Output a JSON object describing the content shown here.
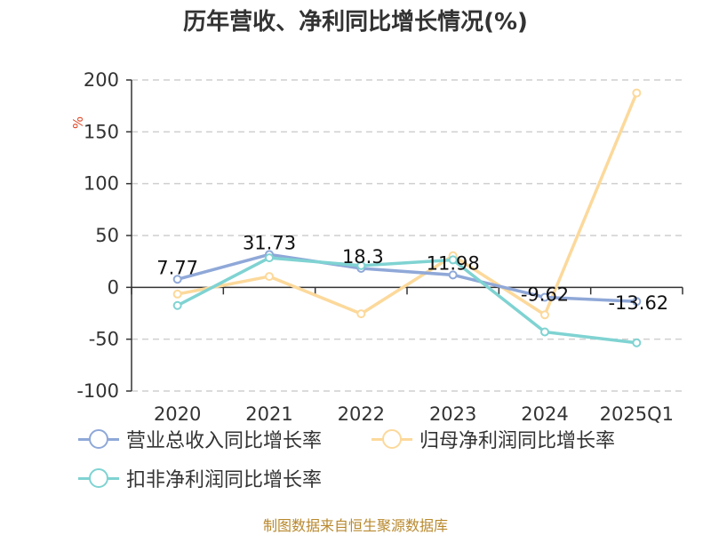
{
  "chart_data": {
    "type": "line",
    "title": "历年营收、净利同比增长情况(%)",
    "ylabel": "%",
    "categories": [
      "2020",
      "2021",
      "2022",
      "2023",
      "2024",
      "2025Q1"
    ],
    "yticks": [
      "200",
      "150",
      "100",
      "50",
      "0",
      "-50",
      "-100"
    ],
    "ylim": [
      -100,
      200
    ],
    "grid": true,
    "legend_position": "bottom",
    "series": [
      {
        "name": "营业总收入同比增长率",
        "color": "#8fa8d8",
        "values": [
          7.77,
          31.73,
          18.3,
          11.98,
          -9.62,
          -13.62
        ],
        "labels": [
          "7.77",
          "31.73",
          "18.3",
          "11.98",
          "-9.62",
          "-13.62"
        ]
      },
      {
        "name": "归母净利润同比增长率",
        "color": "#fcd99b",
        "values": [
          -6.5,
          10.5,
          -25.5,
          30.5,
          -26.5,
          187.5
        ]
      },
      {
        "name": "扣非净利润同比增长率",
        "color": "#7fd3d2",
        "values": [
          -17.5,
          28.5,
          21,
          26.5,
          -43,
          -53.5
        ]
      }
    ]
  },
  "source": "制图数据来自恒生聚源数据库"
}
